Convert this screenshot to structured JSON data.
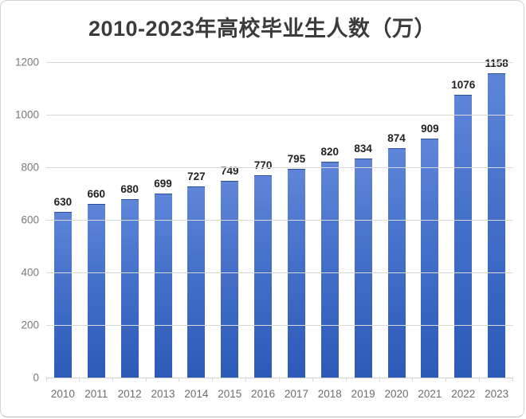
{
  "page": {
    "title": "2010-2023年高校毕业生人数（万）"
  },
  "chart_data": {
    "type": "bar",
    "title": "2010-2023年高校毕业生人数（万）",
    "categories": [
      "2010",
      "2011",
      "2012",
      "2013",
      "2014",
      "2015",
      "2016",
      "2017",
      "2018",
      "2019",
      "2020",
      "2021",
      "2022",
      "2023"
    ],
    "values": [
      630,
      660,
      680,
      699,
      727,
      749,
      770,
      795,
      820,
      834,
      874,
      909,
      1076,
      1158
    ],
    "xlabel": "",
    "ylabel": "",
    "ylim": [
      0,
      1200
    ],
    "yticks": [
      0,
      200,
      400,
      600,
      800,
      1000,
      1200
    ],
    "grid": true,
    "legend_position": "none",
    "data_labels": true,
    "colors": {
      "bar_top": "#5e85d8",
      "bar_mid": "#4470c9",
      "bar_bottom": "#2d5ab8",
      "gridline": "#d9d9d9",
      "title_text": "#3b3b3b",
      "value_label_text": "#222222",
      "axis_tick_text": "#7a7a7a",
      "category_text": "#6e6e6e",
      "card_border": "#d4d4d4",
      "background": "#ffffff"
    }
  }
}
